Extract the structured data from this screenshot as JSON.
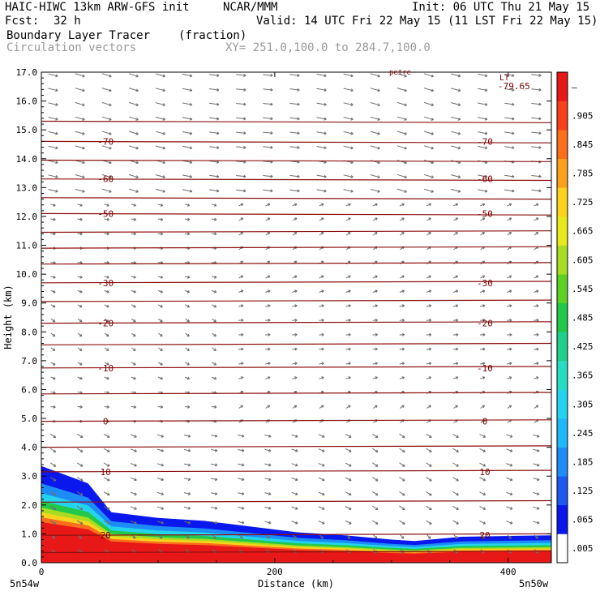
{
  "header": {
    "model": "HAIC-HIWC 13km ARW-GFS init",
    "org": "NCAR/MMM",
    "init": "Init: 06 UTC Thu 21 May 15",
    "fcst_label": "Fcst:",
    "fcst_value": "32 h",
    "valid": "Valid: 14 UTC Fri 22 May 15 (11 LST Fri 22 May 15)",
    "field": "Boundary Layer Tracer",
    "units": "(fraction)",
    "vectors": "Circulation vectors",
    "xy": "XY= 251.0,100.0 to 284.7,100.0"
  },
  "chart_data": {
    "type": "heatmap",
    "title": "Boundary Layer Tracer (fraction)",
    "xlabel": "Distance (km)",
    "ylabel": "Height (km)",
    "xlim": [
      0,
      437
    ],
    "ylim": [
      0,
      17
    ],
    "x_ticks": [
      0,
      200,
      400
    ],
    "y_ticks": [
      "0.0",
      "1.0",
      "2.0",
      "3.0",
      "4.0",
      "5.0",
      "6.0",
      "7.0",
      "8.0",
      "9.0",
      "10.0",
      "11.0",
      "12.0",
      "13.0",
      "14.0",
      "15.0",
      "16.0",
      "17.0"
    ],
    "x_end_labels": {
      "left": "5n54w",
      "right": "5n50w"
    },
    "colorbar": {
      "labels": [
        ".005",
        ".065",
        ".125",
        ".185",
        ".245",
        ".305",
        ".365",
        ".425",
        ".485",
        ".545",
        ".605",
        ".665",
        ".725",
        ".785",
        ".845",
        ".905",
        "–"
      ],
      "colors": [
        "#ffffff",
        "#0a18ee",
        "#1f58f0",
        "#1d8cf6",
        "#1fb8f8",
        "#24d4ee",
        "#26dcc2",
        "#21cf8c",
        "#21c849",
        "#5cd023",
        "#a8dc22",
        "#e8e81e",
        "#fad41c",
        "#faa01c",
        "#fa6e1c",
        "#f8401a",
        "#e81818"
      ]
    },
    "temperature_isotherms": [
      {
        "label": "20",
        "height_km": 0.95
      },
      {
        "label": "10",
        "height_km": 3.15
      },
      {
        "label": "0",
        "height_km": 4.9
      },
      {
        "label": "-10",
        "height_km": 6.75
      },
      {
        "label": "-20",
        "height_km": 8.3
      },
      {
        "label": "-30",
        "height_km": 9.7
      },
      {
        "label": "-50",
        "height_km": 12.1
      },
      {
        "label": "-60",
        "height_km": 13.3
      },
      {
        "label": "-70",
        "height_km": 14.6
      }
    ],
    "extra_isotherm_heights_km": [
      0.35,
      2.1,
      4.0,
      5.85,
      7.55,
      9.05,
      10.35,
      10.9,
      11.45,
      12.65,
      13.95,
      15.3
    ],
    "annotations": [
      "LT",
      "-79.65",
      "petre"
    ],
    "bl_tracer_top_km": [
      {
        "x": 0,
        "top": 3.35
      },
      {
        "x": 40,
        "top": 2.75
      },
      {
        "x": 60,
        "top": 1.75
      },
      {
        "x": 100,
        "top": 1.55
      },
      {
        "x": 140,
        "top": 1.45
      },
      {
        "x": 180,
        "top": 1.25
      },
      {
        "x": 220,
        "top": 1.05
      },
      {
        "x": 260,
        "top": 0.95
      },
      {
        "x": 300,
        "top": 0.8
      },
      {
        "x": 320,
        "top": 0.75
      },
      {
        "x": 360,
        "top": 0.9
      },
      {
        "x": 437,
        "top": 0.95
      }
    ],
    "grid": false
  }
}
